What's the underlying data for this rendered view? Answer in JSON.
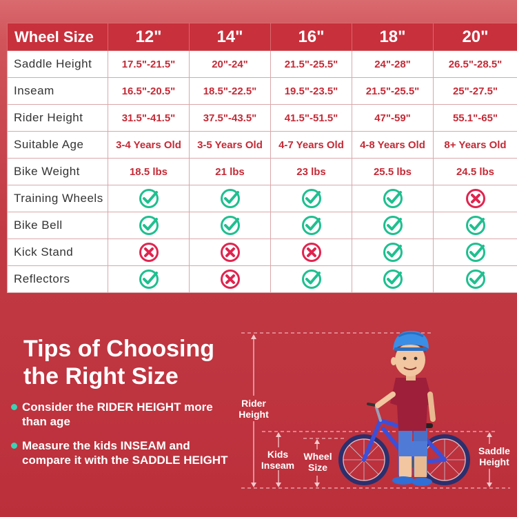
{
  "table": {
    "header_label": "Wheel Size",
    "sizes": [
      "12\"",
      "14\"",
      "16\"",
      "18\"",
      "20\""
    ],
    "rows": [
      {
        "label": "Saddle Height",
        "kind": "text",
        "values": [
          "17.5\"-21.5\"",
          "20\"-24\"",
          "21.5\"-25.5\"",
          "24\"-28\"",
          "26.5\"-28.5\""
        ]
      },
      {
        "label": "Inseam",
        "kind": "text",
        "values": [
          "16.5\"-20.5\"",
          "18.5\"-22.5\"",
          "19.5\"-23.5\"",
          "21.5\"-25.5\"",
          "25\"-27.5\""
        ]
      },
      {
        "label": "Rider Height",
        "kind": "text",
        "values": [
          "31.5\"-41.5\"",
          "37.5\"-43.5\"",
          "41.5\"-51.5\"",
          "47\"-59\"",
          "55.1\"-65\""
        ]
      },
      {
        "label": "Suitable Age",
        "kind": "text",
        "values": [
          "3-4 Years Old",
          "3-5 Years Old",
          "4-7 Years Old",
          "4-8 Years Old",
          "8+ Years Old"
        ]
      },
      {
        "label": "Bike Weight",
        "kind": "text",
        "values": [
          "18.5 lbs",
          "21 lbs",
          "23 lbs",
          "25.5 lbs",
          "24.5 lbs"
        ]
      },
      {
        "label": "Training Wheels",
        "kind": "check",
        "values": [
          true,
          true,
          true,
          true,
          false
        ]
      },
      {
        "label": "Bike Bell",
        "kind": "check",
        "values": [
          true,
          true,
          true,
          true,
          true
        ]
      },
      {
        "label": "Kick Stand",
        "kind": "check",
        "values": [
          false,
          false,
          false,
          true,
          true
        ]
      },
      {
        "label": "Reflectors",
        "kind": "check",
        "values": [
          true,
          false,
          true,
          true,
          true
        ]
      }
    ]
  },
  "tips": {
    "title_line1": "Tips of Choosing",
    "title_line2": "the Right Size",
    "items": [
      "Consider the RIDER HEIGHT more than age",
      "Measure the kids INSEAM and compare it with the SADDLE HEIGHT"
    ]
  },
  "illustration": {
    "rider_height_label": "Rider Height",
    "kids_inseam_label": "Kids Inseam",
    "wheel_size_label": "Wheel Size",
    "saddle_height_label": "Saddle Height"
  },
  "icons": {
    "yes": "check-circle-icon",
    "no": "cross-circle-icon"
  },
  "colors": {
    "header_red": "#c8303c",
    "value_red": "#c42a36",
    "check_green": "#1fbf8f",
    "cross_red": "#e0244e",
    "bullet_teal": "#3ad2b4",
    "bike_blue": "#3c4fd8",
    "shirt_maroon": "#9e1f3a",
    "helmet_blue": "#3a8ee6"
  }
}
